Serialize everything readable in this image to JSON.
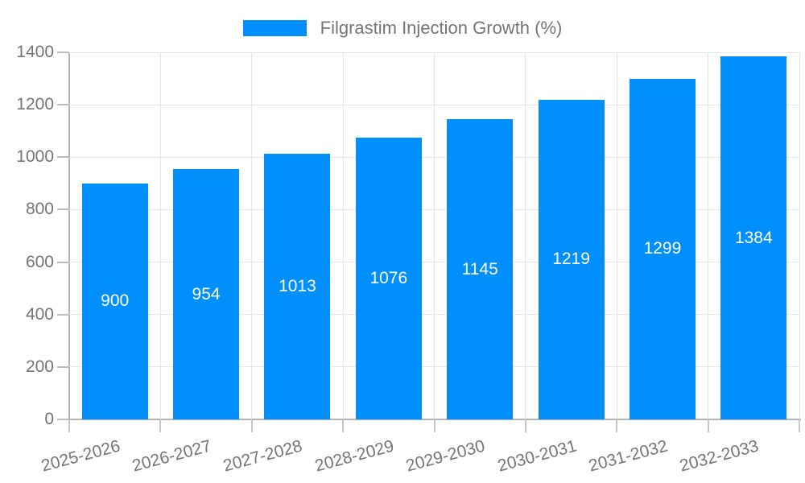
{
  "chart_data": {
    "type": "bar",
    "title": "Filgrastim Injection Growth (%)",
    "categories": [
      "2025-2026",
      "2026-2027",
      "2027-2028",
      "2028-2029",
      "2029-2030",
      "2030-2031",
      "2031-2032",
      "2032-2033"
    ],
    "values": [
      900,
      954,
      1013,
      1076,
      1145,
      1219,
      1299,
      1384
    ],
    "xlabel": "",
    "ylabel": "",
    "ylim": [
      0,
      1400
    ],
    "ytick_step": 200,
    "yticks": [
      "0",
      "200",
      "400",
      "600",
      "800",
      "1000",
      "1200",
      "1400"
    ],
    "legend_position": "top",
    "grid": true,
    "bar_color": "#008FFB",
    "value_label_color": "#ffffff",
    "axis_text_color": "#757575",
    "grid_color": "#e6e6e6",
    "axis_line_color": "#b3b3b3"
  }
}
